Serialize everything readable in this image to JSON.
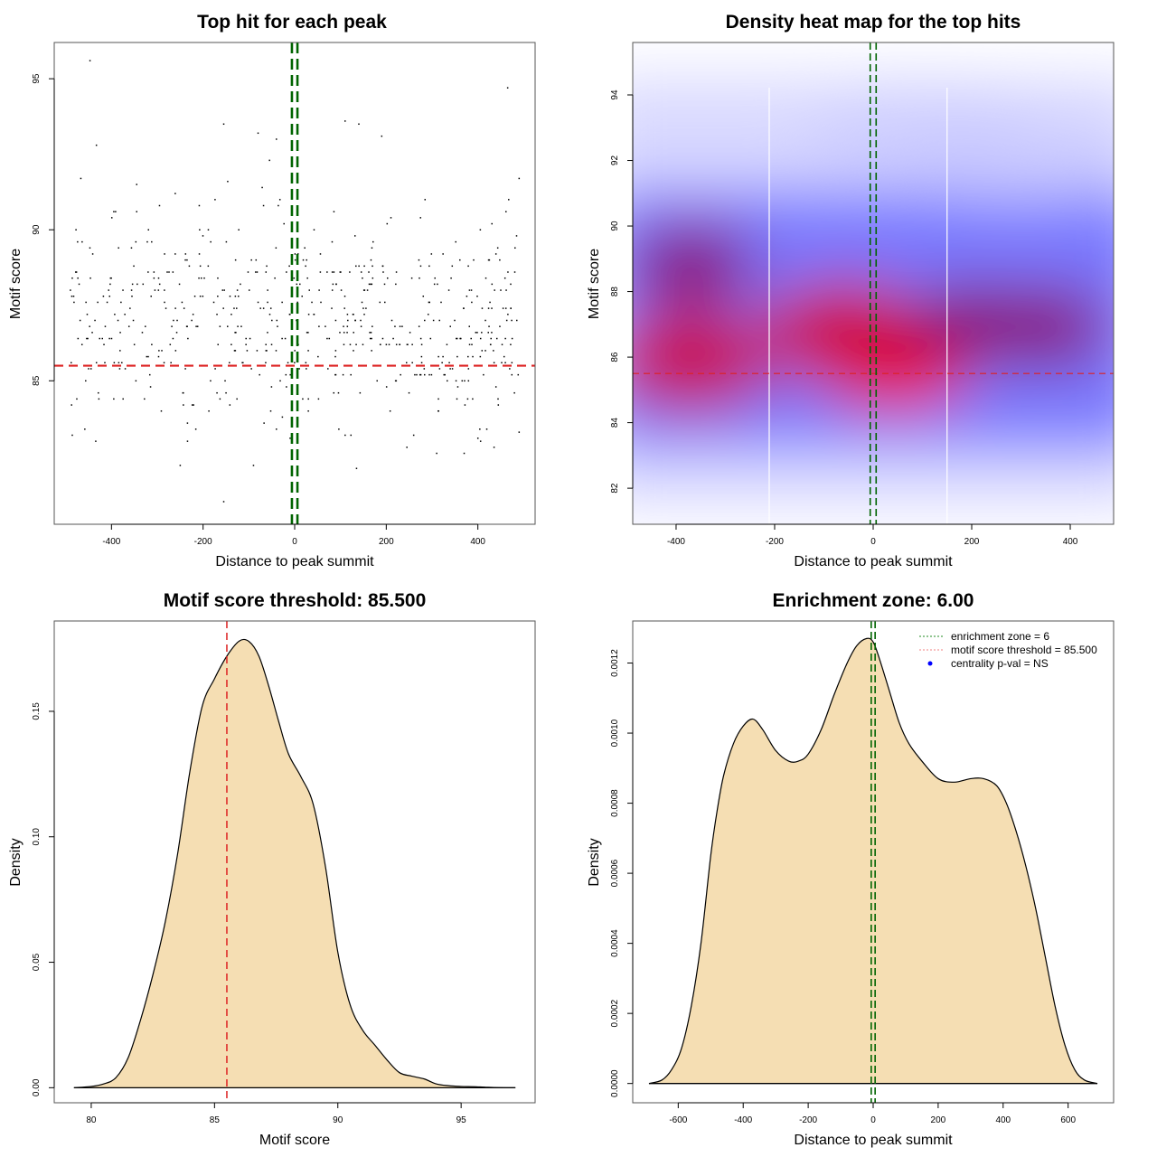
{
  "chart_data": [
    {
      "type": "scatter",
      "title": "Top hit for each peak",
      "xlabel": "Distance to peak summit",
      "ylabel": "Motif score",
      "xlim": [
        -525,
        525
      ],
      "ylim": [
        80.25,
        96.2
      ],
      "xticks": [
        -400,
        -200,
        0,
        200,
        400
      ],
      "yticks": [
        85,
        90,
        95
      ],
      "threshold_line": {
        "axis": "y",
        "value": 85.5,
        "color": "#dd2222",
        "style": "dashed"
      },
      "enrichment_lines": {
        "axis": "x",
        "values": [
          -6,
          6
        ],
        "color": "#006400",
        "style": "dashed"
      },
      "point_color": "#000000",
      "n_points_approx": 600,
      "points_note": "approx. 600 points, distance roughly uniform on [-490,490], motif score mostly 83-92 with outliers 81-95.6",
      "sample_points": [
        [
          -447,
          95.6
        ],
        [
          -467,
          91.7
        ],
        [
          -433,
          92.8
        ],
        [
          -345,
          91.5
        ],
        [
          -155,
          93.5
        ],
        [
          -80,
          93.2
        ],
        [
          -40,
          93.0
        ],
        [
          -55,
          92.3
        ],
        [
          110,
          93.6
        ],
        [
          140,
          93.5
        ],
        [
          190,
          93.1
        ],
        [
          465,
          94.7
        ],
        [
          490,
          91.7
        ],
        [
          -155,
          81.0
        ],
        [
          -250,
          82.2
        ],
        [
          135,
          82.1
        ],
        [
          -90,
          82.2
        ],
        [
          -10,
          83.1
        ],
        [
          370,
          82.6
        ],
        [
          310,
          82.6
        ],
        [
          400,
          83.1
        ],
        [
          490,
          83.3
        ],
        [
          -40,
          83.4
        ]
      ]
    },
    {
      "type": "heatmap",
      "title": "Density heat map for the top hits",
      "xlabel": "Distance to peak summit",
      "ylabel": "Motif score",
      "xlim": [
        -488,
        488
      ],
      "ylim": [
        80.9,
        95.6
      ],
      "xticks": [
        -400,
        -200,
        0,
        200,
        400
      ],
      "yticks": [
        82,
        84,
        86,
        88,
        90,
        92,
        94
      ],
      "colormap": [
        "#ffffff",
        "#0000ff",
        "#ff0000"
      ],
      "density_blobs": [
        {
          "x": 40,
          "y": 86.1,
          "intensity": 1.0
        },
        {
          "x": -60,
          "y": 86.8,
          "intensity": 0.72
        },
        {
          "x": -370,
          "y": 85.9,
          "intensity": 0.62
        },
        {
          "x": -370,
          "y": 88.8,
          "intensity": 0.48
        },
        {
          "x": 200,
          "y": 87.0,
          "intensity": 0.55
        },
        {
          "x": 350,
          "y": 86.9,
          "intensity": 0.45
        },
        {
          "x": 100,
          "y": 92.8,
          "intensity": 0.08
        },
        {
          "x": 300,
          "y": 92.0,
          "intensity": 0.08
        }
      ],
      "white_vlines": [
        -211,
        150
      ],
      "threshold_line": {
        "axis": "y",
        "value": 85.5,
        "color": "#dd2222",
        "style": "dashed"
      },
      "enrichment_lines": {
        "axis": "x",
        "values": [
          -6,
          6
        ],
        "color": "#006400",
        "style": "dashed"
      }
    },
    {
      "type": "area",
      "title": "Motif score threshold: 85.500",
      "xlabel": "Motif score",
      "ylabel": "Density",
      "xlim": [
        78.5,
        98
      ],
      "ylim": [
        -0.006,
        0.186
      ],
      "xticks": [
        80,
        85,
        90,
        95
      ],
      "yticks": [
        0.0,
        0.05,
        0.1,
        0.15
      ],
      "ytick_labels": [
        "0.00",
        "0.05",
        "0.10",
        "0.15"
      ],
      "fill_color": "#f5deb3",
      "x": [
        79.3,
        80.0,
        80.5,
        81.0,
        81.5,
        82.0,
        82.5,
        83.0,
        83.5,
        84.0,
        84.5,
        85.0,
        85.5,
        86.0,
        86.4,
        86.8,
        87.2,
        87.6,
        88.0,
        88.5,
        89.0,
        89.5,
        90.0,
        90.5,
        91.0,
        91.5,
        92.0,
        92.5,
        93.0,
        93.5,
        94.0,
        94.5,
        95.0,
        95.5,
        96.0,
        96.5,
        97.2
      ],
      "y": [
        0.0,
        0.0005,
        0.0015,
        0.004,
        0.012,
        0.027,
        0.045,
        0.066,
        0.093,
        0.126,
        0.152,
        0.163,
        0.172,
        0.178,
        0.1778,
        0.172,
        0.16,
        0.146,
        0.133,
        0.124,
        0.113,
        0.088,
        0.054,
        0.033,
        0.023,
        0.017,
        0.011,
        0.006,
        0.0046,
        0.0035,
        0.0015,
        0.0008,
        0.0005,
        0.0004,
        0.0002,
        5e-05,
        0.0
      ],
      "threshold_line": {
        "axis": "x",
        "value": 85.5,
        "color": "#dd2222",
        "style": "dashed"
      }
    },
    {
      "type": "area",
      "title": "Enrichment zone: 6.00",
      "xlabel": "Distance to peak summit",
      "ylabel": "Density",
      "xlim": [
        -740,
        740
      ],
      "ylim": [
        -5.5e-05,
        0.00132
      ],
      "xticks": [
        -600,
        -400,
        -200,
        0,
        200,
        400,
        600
      ],
      "yticks": [
        0.0,
        0.0002,
        0.0004,
        0.0006,
        0.0008,
        0.001,
        0.0012
      ],
      "ytick_labels": [
        "0.0000",
        "0.0002",
        "0.0004",
        "0.0006",
        "0.0008",
        "0.0010",
        "0.0012"
      ],
      "fill_color": "#f5deb3",
      "x": [
        -690,
        -650,
        -620,
        -590,
        -560,
        -530,
        -500,
        -480,
        -460,
        -430,
        -400,
        -370,
        -340,
        -300,
        -260,
        -230,
        -200,
        -160,
        -120,
        -80,
        -50,
        -20,
        0,
        20,
        50,
        80,
        110,
        150,
        200,
        250,
        300,
        340,
        380,
        410,
        440,
        470,
        500,
        530,
        560,
        590,
        620,
        650,
        690
      ],
      "y": [
        0.0,
        1e-05,
        4e-05,
        0.0001,
        0.00022,
        0.0004,
        0.00065,
        0.00078,
        0.00088,
        0.00097,
        0.00102,
        0.00104,
        0.00101,
        0.00095,
        0.00092,
        0.00092,
        0.00094,
        0.00101,
        0.00111,
        0.0012,
        0.00125,
        0.00127,
        0.00126,
        0.00121,
        0.00112,
        0.00103,
        0.00097,
        0.00092,
        0.00087,
        0.00086,
        0.00087,
        0.00087,
        0.00085,
        0.0008,
        0.00072,
        0.00062,
        0.0005,
        0.00036,
        0.00022,
        0.00011,
        4e-05,
        1e-05,
        0.0
      ],
      "enrichment_lines": {
        "axis": "x",
        "values": [
          -6,
          6
        ],
        "color": "#006400",
        "style": "dashed"
      },
      "legend": {
        "position": "top-right",
        "entries": [
          {
            "label": "enrichment zone = 6",
            "type": "dotted-line",
            "color": "#228b22"
          },
          {
            "label": "motif score threshold = 85.500",
            "type": "dotted-line",
            "color": "#f08080"
          },
          {
            "label": "centrality p-val = NS",
            "type": "point",
            "color": "#0000ff"
          }
        ]
      }
    }
  ]
}
